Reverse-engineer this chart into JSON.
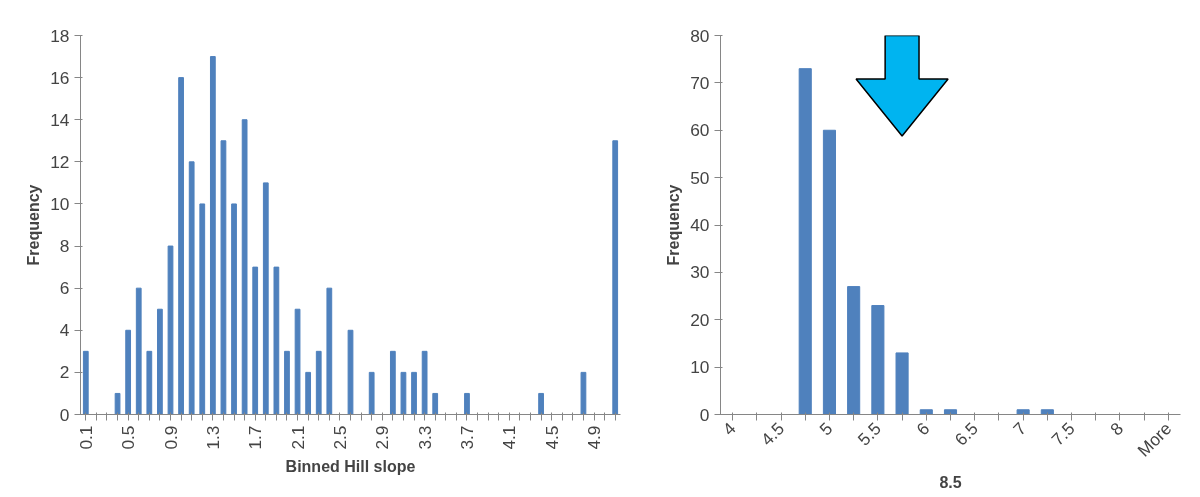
{
  "chart_data": [
    {
      "type": "bar",
      "xlabel": "Binned Hill slope",
      "ylabel": "Frequency",
      "categories": [
        "0.1",
        null,
        null,
        null,
        "0.5",
        null,
        null,
        null,
        "0.9",
        null,
        null,
        null,
        "1.3",
        null,
        null,
        null,
        "1.7",
        null,
        null,
        null,
        "2.1",
        null,
        null,
        null,
        "2.5",
        null,
        null,
        null,
        "2.9",
        null,
        null,
        null,
        "3.3",
        null,
        null,
        null,
        "3.7",
        null,
        null,
        null,
        "4.1",
        null,
        null,
        null,
        "4.5",
        null,
        null,
        null,
        "4.9",
        null,
        null
      ],
      "values": [
        3,
        0,
        0,
        1,
        4,
        6,
        3,
        5,
        8,
        16,
        12,
        10,
        17,
        13,
        10,
        14,
        7,
        11,
        7,
        3,
        5,
        2,
        3,
        6,
        0,
        4,
        0,
        2,
        0,
        3,
        2,
        2,
        3,
        1,
        0,
        0,
        1,
        0,
        0,
        0,
        0,
        0,
        0,
        1,
        0,
        0,
        0,
        2,
        0,
        0,
        13
      ],
      "color": "#4f81bd",
      "ylim": [
        0,
        18
      ],
      "yticks": [
        0,
        2,
        4,
        6,
        8,
        10,
        12,
        14,
        16,
        18
      ],
      "grid": false
    },
    {
      "type": "bar",
      "xlabel": "8.5",
      "ylabel": "Frequency",
      "categories": [
        "4",
        null,
        "4.5",
        null,
        "5",
        null,
        "5.5",
        null,
        "6",
        null,
        "6.5",
        null,
        "7",
        null,
        "7.5",
        null,
        "8",
        null,
        "More"
      ],
      "values": [
        0,
        0,
        0,
        73,
        60,
        27,
        23,
        13,
        1,
        1,
        0,
        0,
        1,
        1,
        0,
        0,
        0,
        0,
        0
      ],
      "color": "#4f81bd",
      "ylim": [
        0,
        80
      ],
      "yticks": [
        0,
        10,
        20,
        30,
        40,
        50,
        60,
        70,
        80
      ],
      "grid": false
    }
  ]
}
